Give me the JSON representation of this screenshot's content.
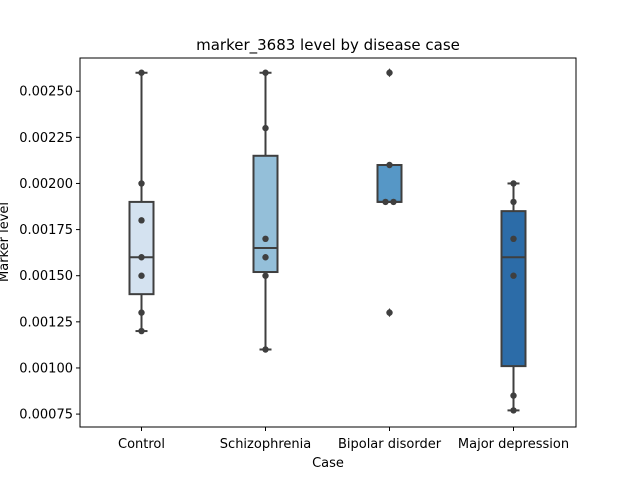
{
  "chart_data": {
    "type": "box",
    "title": "marker_3683 level by disease case",
    "xlabel": "Case",
    "ylabel": "Marker level",
    "categories": [
      "Control",
      "Schizophrenia",
      "Bipolar disorder",
      "Major depression"
    ],
    "ylim": [
      0.00068,
      0.00268
    ],
    "yticks": [
      0.00075,
      0.001,
      0.00125,
      0.0015,
      0.00175,
      0.002,
      0.00225,
      0.0025
    ],
    "ytick_labels": [
      "0.00075",
      "0.00100",
      "0.00125",
      "0.00150",
      "0.00175",
      "0.00200",
      "0.00225",
      "0.00250"
    ],
    "grid": false,
    "colors": [
      "#d4e2f0",
      "#94bfd9",
      "#5697c6",
      "#2c6ca8"
    ],
    "boxes": [
      {
        "category": "Control",
        "q1": 0.0014,
        "median": 0.0016,
        "q3": 0.0019,
        "whisker_low": 0.0012,
        "whisker_high": 0.0026,
        "outliers": [],
        "points": [
          0.0026,
          0.002,
          0.0018,
          0.0016,
          0.0015,
          0.0013,
          0.0012
        ]
      },
      {
        "category": "Schizophrenia",
        "q1": 0.00152,
        "median": 0.00165,
        "q3": 0.00215,
        "whisker_low": 0.0011,
        "whisker_high": 0.0026,
        "outliers": [],
        "points": [
          0.0026,
          0.0023,
          0.0017,
          0.0016,
          0.0015,
          0.0011
        ]
      },
      {
        "category": "Bipolar disorder",
        "q1": 0.0019,
        "median": 0.0019,
        "q3": 0.0021,
        "whisker_low": 0.0019,
        "whisker_high": 0.0021,
        "outliers": [
          0.0026,
          0.0013
        ],
        "points": [
          0.0026,
          0.0021,
          0.0019,
          0.0019,
          0.0013
        ]
      },
      {
        "category": "Major depression",
        "q1": 0.00101,
        "median": 0.0016,
        "q3": 0.00185,
        "whisker_low": 0.00077,
        "whisker_high": 0.002,
        "outliers": [],
        "points": [
          0.002,
          0.0019,
          0.0017,
          0.0015,
          0.00085,
          0.00077
        ]
      }
    ]
  }
}
